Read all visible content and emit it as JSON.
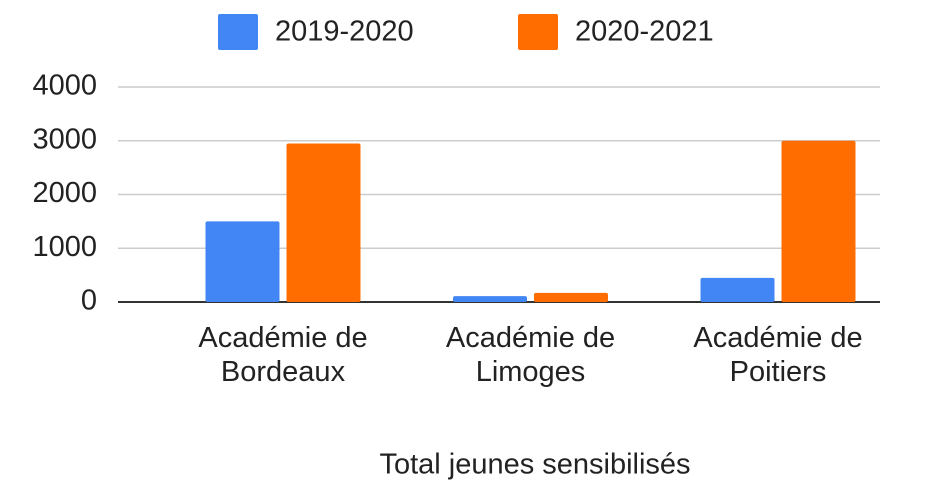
{
  "chart_data": {
    "type": "bar",
    "x_label": "Total jeunes sensibilisés",
    "categories": [
      "Académie de Bordeaux",
      "Académie de Limoges",
      "Académie de Poitiers"
    ],
    "series": [
      {
        "name": "2019-2020",
        "color": "#4285f4",
        "values": [
          1500,
          110,
          450
        ]
      },
      {
        "name": "2020-2021",
        "color": "#ff6d01",
        "values": [
          2950,
          170,
          3000
        ]
      }
    ],
    "ylim": [
      0,
      4000
    ],
    "yticks": [
      0,
      1000,
      2000,
      3000,
      4000
    ],
    "grid": true,
    "legend": "top"
  }
}
